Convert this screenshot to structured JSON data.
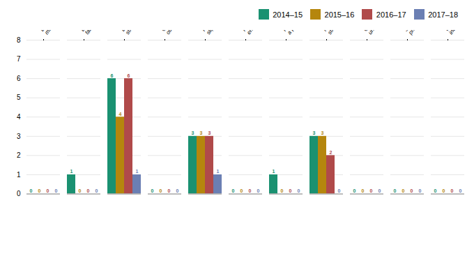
{
  "chart_data": {
    "type": "bar",
    "categories": [
      "Being hit by\nmoving objects",
      "Biological\nfactors",
      "Body\nstressing",
      "Chemicals and\nother substances",
      "Falls, trips and\nslips of a person",
      "Heat, electricity and other\nenvironmental factors",
      "Hitting objects with\na part of the body",
      "Mental\nstress",
      "Other and\nunspecified",
      "Sound and\npressure",
      "Vehicle\nincidents"
    ],
    "series": [
      {
        "name": "2014–15",
        "color": "#1a9171",
        "values": [
          0,
          1,
          6,
          0,
          3,
          0,
          1,
          3,
          0,
          0,
          0
        ]
      },
      {
        "name": "2015–16",
        "color": "#b5860d",
        "values": [
          0,
          0,
          4,
          0,
          3,
          0,
          0,
          3,
          0,
          0,
          0
        ]
      },
      {
        "name": "2016–17",
        "color": "#b04a4a",
        "values": [
          0,
          0,
          6,
          0,
          3,
          0,
          0,
          2,
          0,
          0,
          0
        ]
      },
      {
        "name": "2017–18",
        "color": "#6b7fb3",
        "values": [
          0,
          0,
          1,
          0,
          1,
          0,
          0,
          0,
          0,
          0,
          0
        ]
      }
    ],
    "ylim": [
      0,
      8
    ],
    "yticks": [
      0,
      1,
      2,
      3,
      4,
      5,
      6,
      7,
      8
    ],
    "grid": true,
    "legend": "upper right",
    "data_labels": true
  }
}
